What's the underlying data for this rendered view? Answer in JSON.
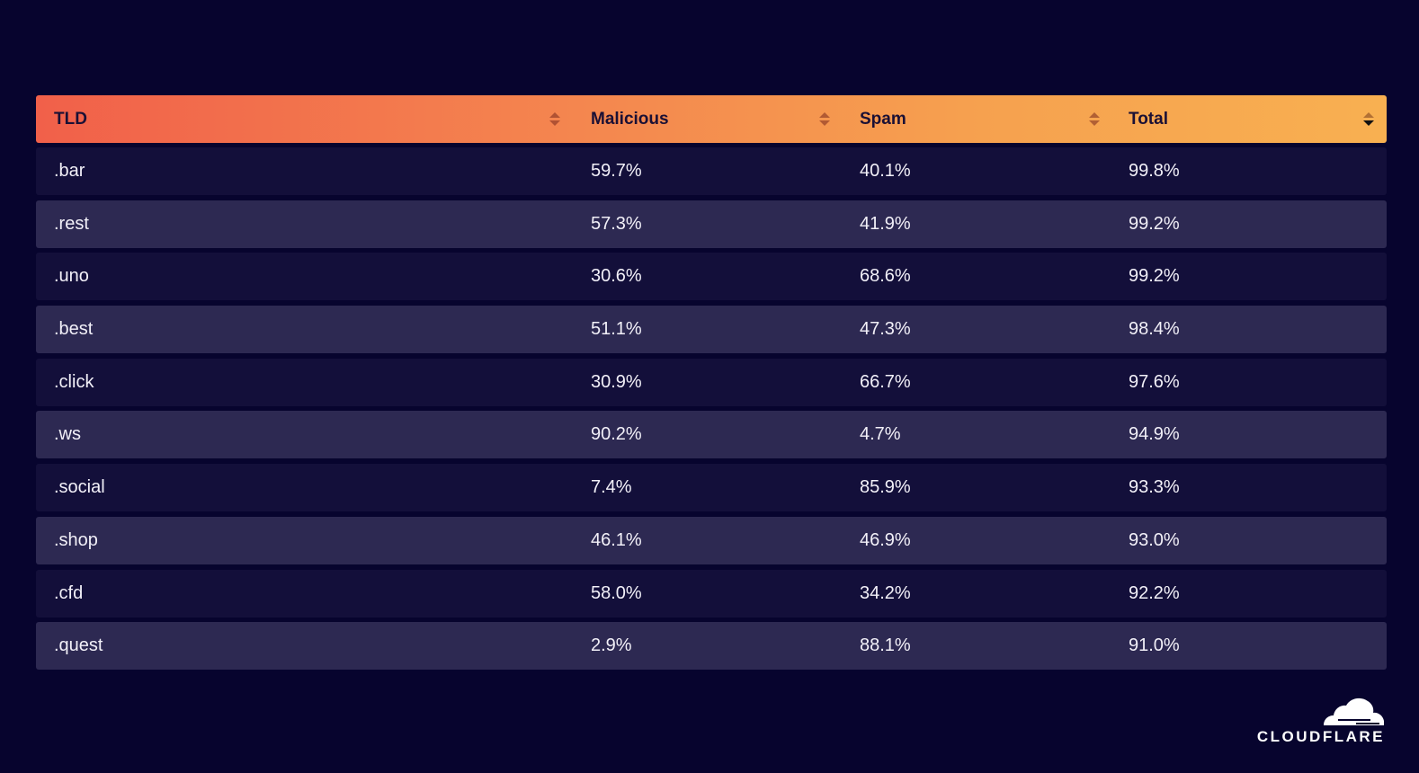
{
  "chart_data": {
    "type": "table",
    "columns": [
      "TLD",
      "Malicious",
      "Spam",
      "Total"
    ],
    "sorted_column": "Total",
    "sort_direction": "descending",
    "rows": [
      [
        ".bar",
        "59.7%",
        "40.1%",
        "99.8%"
      ],
      [
        ".rest",
        "57.3%",
        "41.9%",
        "99.2%"
      ],
      [
        ".uno",
        "30.6%",
        "68.6%",
        "99.2%"
      ],
      [
        ".best",
        "51.1%",
        "47.3%",
        "98.4%"
      ],
      [
        ".click",
        "30.9%",
        "66.7%",
        "97.6%"
      ],
      [
        ".ws",
        "90.2%",
        "4.7%",
        "94.9%"
      ],
      [
        ".social",
        "7.4%",
        "85.9%",
        "93.3%"
      ],
      [
        ".shop",
        "46.1%",
        "46.9%",
        "93.0%"
      ],
      [
        ".cfd",
        "58.0%",
        "34.2%",
        "92.2%"
      ],
      [
        ".quest",
        "2.9%",
        "88.1%",
        "91.0%"
      ]
    ]
  },
  "logo": {
    "text": "CLOUDFLARE",
    "icon": "cloud-icon"
  },
  "colors": {
    "background": "#07042e",
    "header_gradient_start": "#f1604a",
    "header_gradient_end": "#f8b051",
    "row_dark": "#130f3a",
    "row_light": "#2d2952"
  }
}
